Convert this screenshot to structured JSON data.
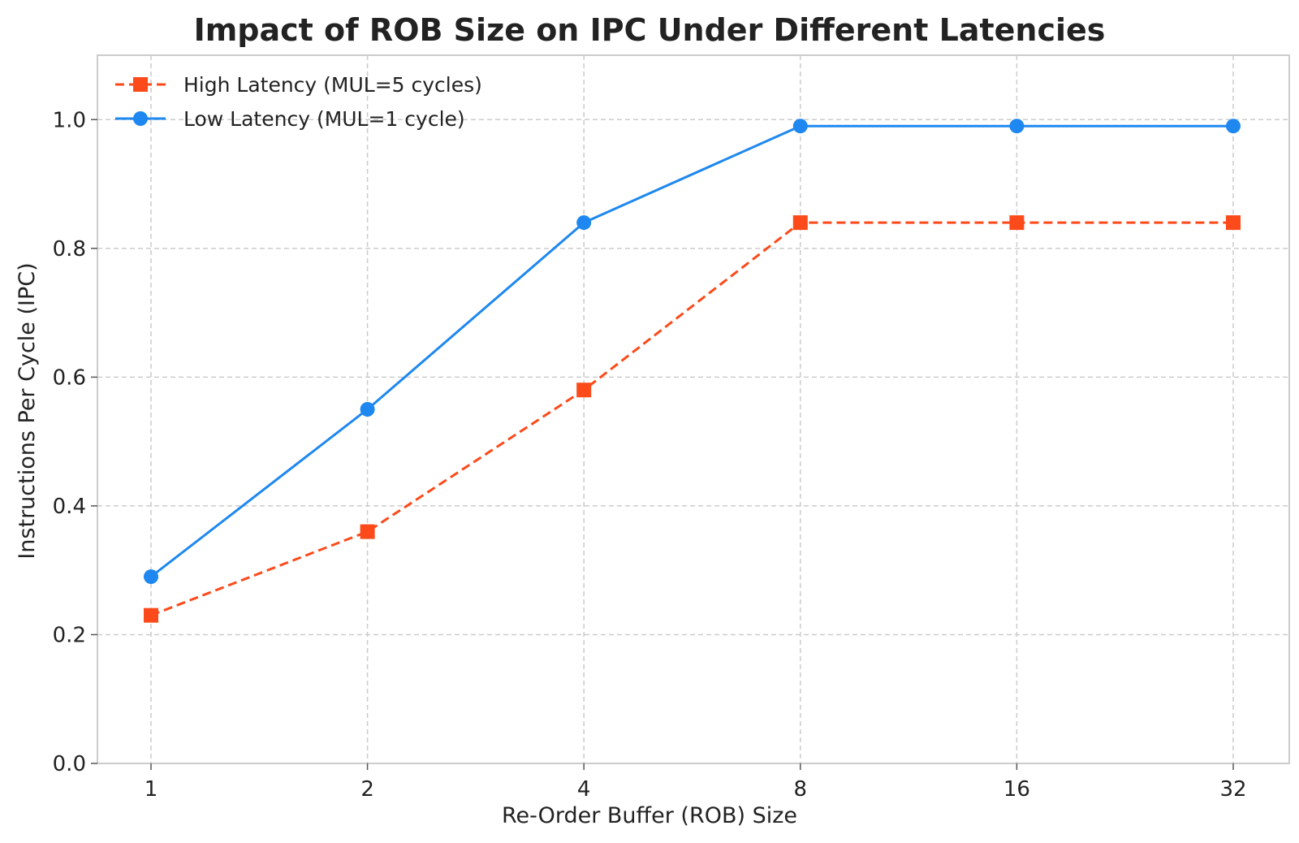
{
  "chart_data": {
    "type": "line",
    "title": "Impact of ROB Size on IPC Under Different Latencies",
    "xlabel": "Re-Order Buffer (ROB) Size",
    "ylabel": "Instructions Per Cycle (IPC)",
    "categories": [
      "1",
      "2",
      "4",
      "8",
      "16",
      "32"
    ],
    "x_scale": "log2",
    "ylim": [
      0.0,
      1.1
    ],
    "yticks": [
      "0.0",
      "0.2",
      "0.4",
      "0.6",
      "0.8",
      "1.0"
    ],
    "grid": true,
    "legend_position": "top-left",
    "series": [
      {
        "name": "High Latency (MUL=5 cycles)",
        "values": [
          0.23,
          0.36,
          0.58,
          0.84,
          0.84,
          0.84
        ],
        "color": "#fc4a1a",
        "line_style": "dashed",
        "marker": "square"
      },
      {
        "name": "Low Latency (MUL=1 cycle)",
        "values": [
          0.29,
          0.55,
          0.84,
          0.99,
          0.99,
          0.99
        ],
        "color": "#1e88f0",
        "line_style": "solid",
        "marker": "circle"
      }
    ]
  }
}
